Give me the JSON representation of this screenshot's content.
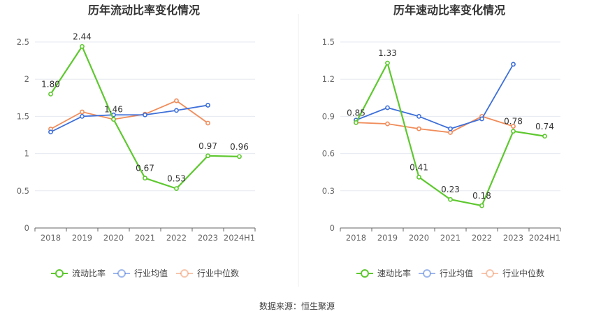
{
  "source_label": "数据来源：恒生聚源",
  "chart_data": [
    {
      "type": "line",
      "title": "历年流动比率变化情况",
      "categories": [
        "2018",
        "2019",
        "2020",
        "2021",
        "2022",
        "2023",
        "2024H1"
      ],
      "ylim": [
        0,
        2.5
      ],
      "yticks": [
        "0",
        "0.5",
        "1",
        "1.5",
        "2",
        "2.5"
      ],
      "ytick_values": [
        0,
        0.5,
        1,
        1.5,
        2,
        2.5
      ],
      "series": [
        {
          "name": "流动比率",
          "color": "#5ec82f",
          "values": [
            1.8,
            2.44,
            1.46,
            0.67,
            0.53,
            0.97,
            0.96
          ],
          "labels": [
            "1.80",
            "2.44",
            "1.46",
            "0.67",
            "0.53",
            "0.97",
            "0.96"
          ]
        },
        {
          "name": "行业均值",
          "color": "#3d6fd9",
          "values": [
            1.29,
            1.5,
            1.52,
            1.52,
            1.58,
            1.65,
            null
          ]
        },
        {
          "name": "行业中位数",
          "color": "#f08c5a",
          "values": [
            1.33,
            1.56,
            1.46,
            1.53,
            1.71,
            1.41,
            null
          ]
        }
      ]
    },
    {
      "type": "line",
      "title": "历年速动比率变化情况",
      "categories": [
        "2018",
        "2019",
        "2020",
        "2021",
        "2022",
        "2023",
        "2024H1"
      ],
      "ylim": [
        0,
        1.5
      ],
      "yticks": [
        "0",
        "0.3",
        "0.6",
        "0.9",
        "1.2",
        "1.5"
      ],
      "ytick_values": [
        0,
        0.3,
        0.6,
        0.9,
        1.2,
        1.5
      ],
      "series": [
        {
          "name": "速动比率",
          "color": "#5ec82f",
          "values": [
            0.85,
            1.33,
            0.41,
            0.23,
            0.18,
            0.78,
            0.74
          ],
          "labels": [
            "0.85",
            "1.33",
            "0.41",
            "0.23",
            "0.18",
            "0.78",
            "0.74"
          ]
        },
        {
          "name": "行业均值",
          "color": "#3d6fd9",
          "values": [
            0.87,
            0.97,
            0.9,
            0.8,
            0.88,
            1.32,
            null
          ]
        },
        {
          "name": "行业中位数",
          "color": "#f08c5a",
          "values": [
            0.85,
            0.84,
            0.8,
            0.77,
            0.9,
            0.82,
            null
          ]
        }
      ]
    }
  ]
}
